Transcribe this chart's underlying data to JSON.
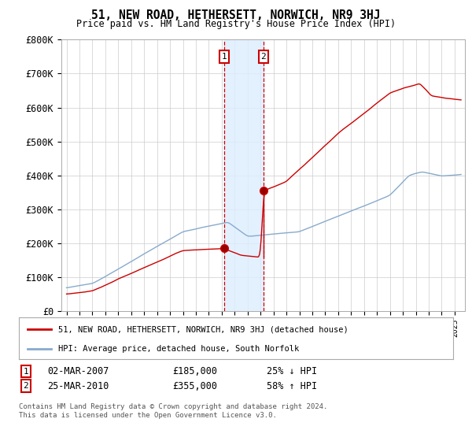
{
  "title": "51, NEW ROAD, HETHERSETT, NORWICH, NR9 3HJ",
  "subtitle": "Price paid vs. HM Land Registry's House Price Index (HPI)",
  "ylim": [
    0,
    800000
  ],
  "yticks": [
    0,
    100000,
    200000,
    300000,
    400000,
    500000,
    600000,
    700000,
    800000
  ],
  "ytick_labels": [
    "£0",
    "£100K",
    "£200K",
    "£300K",
    "£400K",
    "£500K",
    "£600K",
    "£700K",
    "£800K"
  ],
  "transaction1": {
    "date": "02-MAR-2007",
    "price": 185000,
    "price_str": "£185,000",
    "pct": "25% ↓ HPI",
    "year": 2007.17
  },
  "transaction2": {
    "date": "25-MAR-2010",
    "price": 355000,
    "price_str": "£355,000",
    "pct": "58% ↑ HPI",
    "year": 2010.23
  },
  "legend_line1": "51, NEW ROAD, HETHERSETT, NORWICH, NR9 3HJ (detached house)",
  "legend_line2": "HPI: Average price, detached house, South Norfolk",
  "footnote": "Contains HM Land Registry data © Crown copyright and database right 2024.\nThis data is licensed under the Open Government Licence v3.0.",
  "line_color_red": "#cc0000",
  "line_color_blue": "#88aacc",
  "bg_color": "#ffffff",
  "grid_color": "#cccccc",
  "shade_color": "#ddeeff",
  "dashed_color": "#cc0000"
}
